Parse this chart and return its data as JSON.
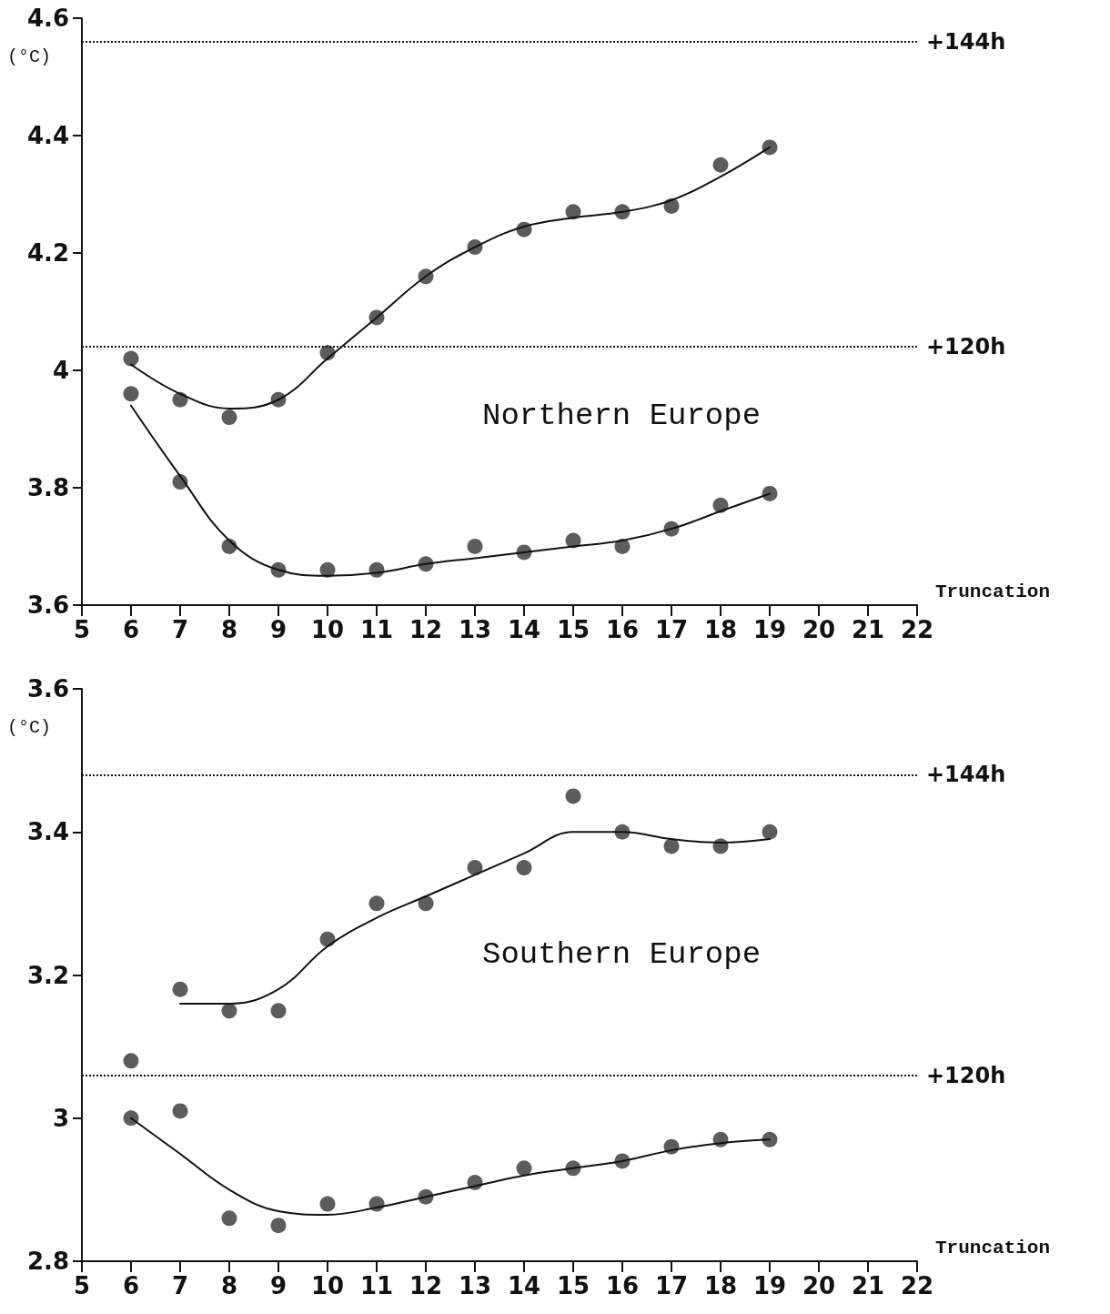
{
  "chart_data": [
    {
      "type": "scatter",
      "xlabel": "Truncation",
      "ylabel": "(°C)",
      "annotations": [
        "Northern Europe"
      ],
      "line_style": "solid",
      "xlim": [
        5,
        22
      ],
      "xticks": [
        5,
        6,
        7,
        8,
        9,
        10,
        11,
        12,
        13,
        14,
        15,
        16,
        17,
        18,
        19,
        20,
        21,
        22
      ],
      "ylim": [
        3.6,
        4.6
      ],
      "yticks": [
        3.6,
        {
          "value": 3.8,
          "label": "3.8"
        },
        {
          "value": 4.0,
          "label": "4"
        },
        4.2,
        4.4,
        4.6
      ],
      "ref_lines": [
        {
          "axis": "y",
          "value": 4.56,
          "label": "+144h",
          "line_style": "dotted"
        },
        {
          "axis": "y",
          "value": 4.04,
          "label": "+120h",
          "line_style": "dotted"
        }
      ],
      "series": [
        {
          "marker": "circle",
          "color": "#333333",
          "x": [
            6,
            7,
            8,
            9,
            10,
            11,
            12,
            13,
            14,
            15,
            16,
            17,
            18,
            19
          ],
          "values": [
            4.02,
            3.95,
            3.92,
            3.95,
            4.03,
            4.09,
            4.16,
            4.21,
            4.24,
            4.27,
            4.27,
            4.28,
            4.35,
            4.38
          ]
        },
        {
          "marker": "circle",
          "color": "#333333",
          "x": [
            6,
            7,
            8,
            9,
            10,
            11,
            12,
            13,
            14,
            15,
            16,
            17,
            18,
            19
          ],
          "values": [
            3.96,
            3.81,
            3.7,
            3.66,
            3.66,
            3.66,
            3.67,
            3.7,
            3.69,
            3.71,
            3.7,
            3.73,
            3.77,
            3.79
          ]
        },
        {
          "type": "line",
          "marker": "none",
          "color": "#111111",
          "x": [
            6,
            7,
            8,
            9,
            10,
            11,
            12,
            13,
            14,
            15,
            16,
            17,
            18,
            19
          ],
          "values": [
            4.01,
            3.96,
            3.935,
            3.95,
            4.02,
            4.09,
            4.16,
            4.21,
            4.245,
            4.26,
            4.27,
            4.29,
            4.33,
            4.38
          ]
        },
        {
          "type": "line",
          "marker": "none",
          "color": "#111111",
          "x": [
            6,
            7,
            8,
            9,
            10,
            11,
            12,
            13,
            14,
            15,
            16,
            17,
            18,
            19
          ],
          "values": [
            3.94,
            3.82,
            3.71,
            3.66,
            3.65,
            3.655,
            3.67,
            3.68,
            3.69,
            3.7,
            3.71,
            3.73,
            3.76,
            3.79
          ]
        }
      ]
    },
    {
      "type": "scatter",
      "xlabel": "Truncation",
      "ylabel": "(°C)",
      "annotations": [
        "Southern Europe"
      ],
      "line_style": "solid",
      "xlim": [
        5,
        22
      ],
      "xticks": [
        5,
        6,
        7,
        8,
        9,
        10,
        11,
        12,
        13,
        14,
        15,
        16,
        17,
        18,
        19,
        20,
        21,
        22
      ],
      "ylim": [
        2.8,
        3.6
      ],
      "yticks": [
        2.8,
        {
          "value": 3.0,
          "label": "3"
        },
        3.2,
        3.4,
        3.6
      ],
      "ref_lines": [
        {
          "axis": "y",
          "value": 3.48,
          "label": "+144h",
          "line_style": "dotted"
        },
        {
          "axis": "y",
          "value": 3.06,
          "label": "+120h",
          "line_style": "dotted"
        }
      ],
      "series": [
        {
          "marker": "circle",
          "color": "#333333",
          "x": [
            6,
            7,
            8,
            9,
            10,
            11,
            12,
            13,
            14,
            15,
            16,
            17,
            18,
            19
          ],
          "values": [
            3.08,
            3.18,
            3.15,
            3.15,
            3.25,
            3.3,
            3.3,
            3.35,
            3.35,
            3.45,
            3.4,
            3.38,
            3.38,
            3.4
          ]
        },
        {
          "marker": "circle",
          "color": "#333333",
          "x": [
            6,
            7,
            8,
            9,
            10,
            11,
            12,
            13,
            14,
            15,
            16,
            17,
            18,
            19
          ],
          "values": [
            3.0,
            3.01,
            2.86,
            2.85,
            2.88,
            2.88,
            2.89,
            2.91,
            2.93,
            2.93,
            2.94,
            2.96,
            2.97,
            2.97
          ]
        },
        {
          "type": "line",
          "marker": "none",
          "color": "#111111",
          "x": [
            7,
            8,
            9,
            10,
            11,
            12,
            13,
            14,
            15,
            16,
            17,
            18,
            19
          ],
          "values": [
            3.16,
            3.16,
            3.18,
            3.24,
            3.28,
            3.31,
            3.34,
            3.37,
            3.4,
            3.4,
            3.39,
            3.385,
            3.39
          ]
        },
        {
          "type": "line",
          "marker": "none",
          "color": "#111111",
          "x": [
            6,
            7,
            8,
            9,
            10,
            11,
            12,
            13,
            14,
            15,
            16,
            17,
            18,
            19
          ],
          "values": [
            3.0,
            2.95,
            2.9,
            2.87,
            2.865,
            2.875,
            2.89,
            2.905,
            2.92,
            2.93,
            2.94,
            2.955,
            2.965,
            2.97
          ]
        }
      ]
    }
  ]
}
